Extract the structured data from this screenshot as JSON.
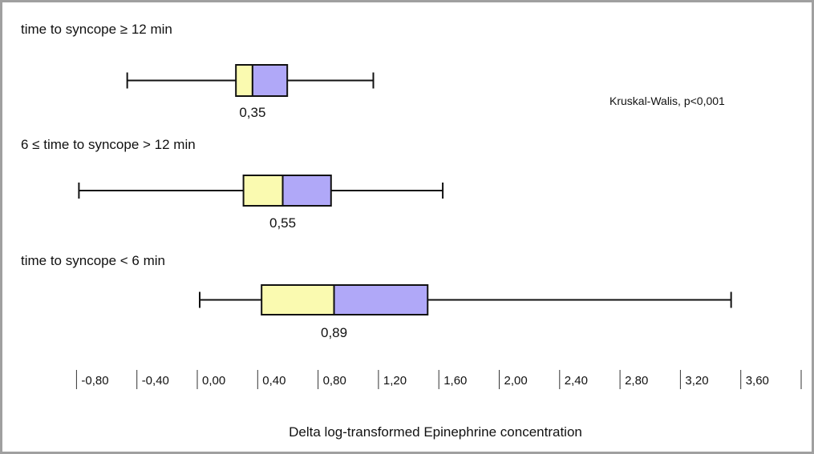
{
  "chart_data": {
    "type": "box",
    "title": "",
    "xlabel": "Delta log-transformed Epinephrine concentration",
    "ylabel": "",
    "xlim": [
      -1.0,
      4.0
    ],
    "tick_values": [
      -0.8,
      -0.4,
      0.0,
      0.4,
      0.8,
      1.2,
      1.6,
      2.0,
      2.4,
      2.8,
      3.2,
      3.6
    ],
    "tick_labels": [
      "-0,80",
      "-0,40",
      "0,00",
      "0,40",
      "0,80",
      "1,20",
      "1,60",
      "2,00",
      "2,40",
      "2,80",
      "3,20",
      "3,60"
    ],
    "annotation": "Kruskal-Walis, p<0,001",
    "colors": {
      "lower_box": "#fafab0",
      "upper_box": "#b0a8f8",
      "stroke": "#111111"
    },
    "groups": [
      {
        "label": "time to syncope ≥ 12 min",
        "min": -0.48,
        "q1": 0.24,
        "median": 0.35,
        "q3": 0.58,
        "max": 1.15,
        "median_label": "0,35"
      },
      {
        "label": "6 ≤ time to syncope > 12 min",
        "min": -0.8,
        "q1": 0.29,
        "median": 0.55,
        "q3": 0.87,
        "max": 1.61,
        "median_label": "0,55"
      },
      {
        "label": "time to syncope < 6 min",
        "min": 0.0,
        "q1": 0.41,
        "median": 0.89,
        "q3": 1.51,
        "max": 3.52,
        "median_label": "0,89"
      }
    ]
  }
}
